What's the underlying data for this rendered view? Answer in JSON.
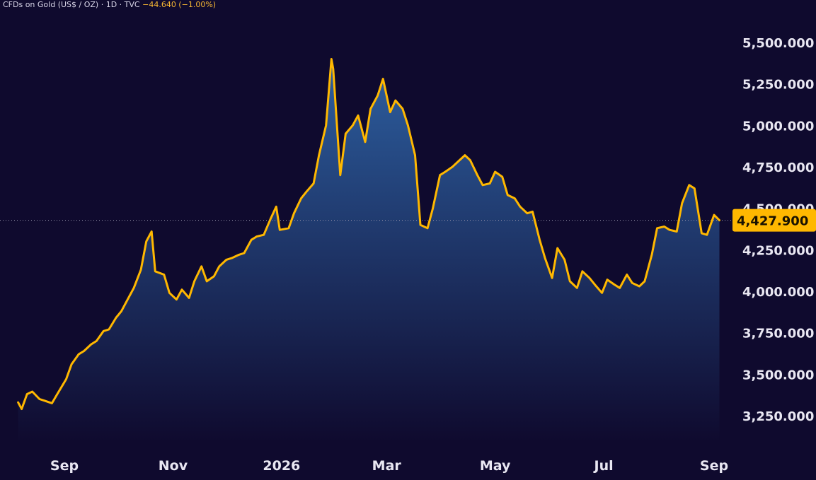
{
  "header": {
    "symbol": "CFDs on Gold (US$ / OZ)",
    "interval": "1D",
    "source": "TVC",
    "change": "−44.640 (−1.00%)",
    "separator": "·"
  },
  "price_tag": {
    "label": "4,427.900"
  },
  "colors": {
    "background": "#0f0a2e",
    "line": "#ffb800",
    "area_top": "#2d5fa0",
    "area_bottom": "#0f0a2e",
    "price_tag_bg": "#ffb800",
    "text": "#e9e7f2"
  },
  "chart_data": {
    "type": "area",
    "title": "",
    "xlabel": "",
    "ylabel": "",
    "ylim": [
      2950,
      5600
    ],
    "x_ticks": [
      {
        "date": "2025-09-01",
        "label": "Sep"
      },
      {
        "date": "2025-11-01",
        "label": "Nov"
      },
      {
        "date": "2026-01-01",
        "label": "2026"
      },
      {
        "date": "2026-03-01",
        "label": "Mar"
      },
      {
        "date": "2026-05-01",
        "label": "May"
      },
      {
        "date": "2026-07-01",
        "label": "Jul"
      },
      {
        "date": "2026-09-01",
        "label": "Sep"
      }
    ],
    "y_ticks": [
      {
        "value": 3250,
        "label": "3,250.000"
      },
      {
        "value": 3500,
        "label": "3,500.000"
      },
      {
        "value": 3750,
        "label": "3,750.000"
      },
      {
        "value": 4000,
        "label": "4,000.000"
      },
      {
        "value": 4250,
        "label": "4,250.000"
      },
      {
        "value": 4500,
        "label": "4,500.000"
      },
      {
        "value": 4750,
        "label": "4,750.000"
      },
      {
        "value": 5000,
        "label": "5,000.000"
      },
      {
        "value": 5250,
        "label": "5,250.000"
      },
      {
        "value": 5500,
        "label": "5,500.000"
      }
    ],
    "last_price": 4427.9,
    "series": [
      {
        "x": [
          "2025-08-06",
          "2025-08-08",
          "2025-08-11",
          "2025-08-14",
          "2025-08-18",
          "2025-08-21",
          "2025-08-25",
          "2025-08-28",
          "2025-09-02",
          "2025-09-05",
          "2025-09-09",
          "2025-09-12",
          "2025-09-16",
          "2025-09-19",
          "2025-09-23",
          "2025-09-26",
          "2025-09-30",
          "2025-10-03",
          "2025-10-07",
          "2025-10-10",
          "2025-10-14",
          "2025-10-17",
          "2025-10-20",
          "2025-10-22",
          "2025-10-27",
          "2025-10-30",
          "2025-11-03",
          "2025-11-06",
          "2025-11-10",
          "2025-11-13",
          "2025-11-17",
          "2025-11-20",
          "2025-11-24",
          "2025-11-27",
          "2025-12-01",
          "2025-12-04",
          "2025-12-08",
          "2025-12-11",
          "2025-12-15",
          "2025-12-18",
          "2025-12-22",
          "2025-12-26",
          "2025-12-29",
          "2025-12-31",
          "2026-01-05",
          "2026-01-08",
          "2026-01-12",
          "2026-01-15",
          "2026-01-19",
          "2026-01-22",
          "2026-01-26",
          "2026-01-29",
          "2026-01-30",
          "2026-02-03",
          "2026-02-06",
          "2026-02-10",
          "2026-02-13",
          "2026-02-17",
          "2026-02-20",
          "2026-02-24",
          "2026-02-27",
          "2026-03-03",
          "2026-03-06",
          "2026-03-10",
          "2026-03-13",
          "2026-03-17",
          "2026-03-20",
          "2026-03-24",
          "2026-03-27",
          "2026-03-31",
          "2026-04-03",
          "2026-04-07",
          "2026-04-10",
          "2026-04-14",
          "2026-04-17",
          "2026-04-21",
          "2026-04-24",
          "2026-04-28",
          "2026-05-01",
          "2026-05-05",
          "2026-05-08",
          "2026-05-12",
          "2026-05-15",
          "2026-05-19",
          "2026-05-22",
          "2026-05-26",
          "2026-05-29",
          "2026-06-02",
          "2026-06-05",
          "2026-06-09",
          "2026-06-12",
          "2026-06-16",
          "2026-06-19",
          "2026-06-23",
          "2026-06-26",
          "2026-06-30",
          "2026-07-03",
          "2026-07-07",
          "2026-07-10",
          "2026-07-14",
          "2026-07-17",
          "2026-07-21",
          "2026-07-24",
          "2026-07-28",
          "2026-07-31",
          "2026-08-04",
          "2026-08-07",
          "2026-08-11",
          "2026-08-14",
          "2026-08-18",
          "2026-08-21",
          "2026-08-25",
          "2026-08-28",
          "2026-09-01",
          "2026-09-04"
        ],
        "values": [
          3330,
          3290,
          3380,
          3395,
          3350,
          3340,
          3325,
          3380,
          3470,
          3560,
          3620,
          3640,
          3680,
          3700,
          3760,
          3770,
          3840,
          3880,
          3960,
          4020,
          4130,
          4300,
          4360,
          4120,
          4100,
          3990,
          3950,
          4010,
          3960,
          4060,
          4150,
          4060,
          4090,
          4150,
          4190,
          4200,
          4220,
          4230,
          4310,
          4330,
          4340,
          4440,
          4510,
          4370,
          4380,
          4470,
          4560,
          4600,
          4650,
          4820,
          5000,
          5400,
          5340,
          4700,
          4950,
          5000,
          5060,
          4900,
          5100,
          5180,
          5280,
          5080,
          5150,
          5100,
          5000,
          4820,
          4400,
          4380,
          4500,
          4700,
          4720,
          4750,
          4780,
          4820,
          4790,
          4700,
          4640,
          4650,
          4720,
          4690,
          4580,
          4560,
          4510,
          4470,
          4480,
          4310,
          4200,
          4080,
          4260,
          4190,
          4060,
          4020,
          4120,
          4080,
          4040,
          3990,
          4070,
          4040,
          4020,
          4100,
          4050,
          4030,
          4060,
          4220,
          4380,
          4390,
          4370,
          4360,
          4530,
          4640,
          4620,
          4350,
          4340,
          4460,
          4428
        ]
      }
    ]
  }
}
